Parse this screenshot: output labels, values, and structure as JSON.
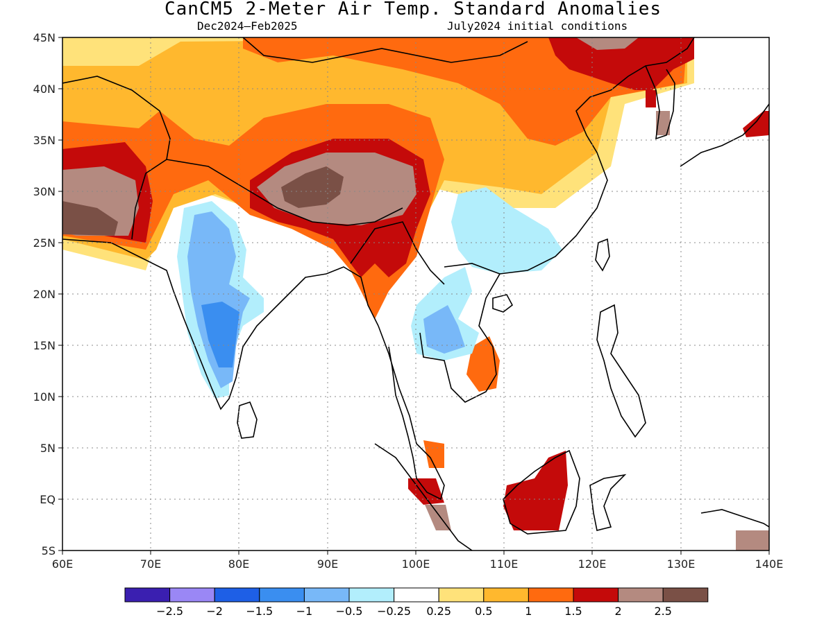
{
  "header": {
    "title": "CanCM5 2-Meter Air Temp. Standard Anomalies",
    "subtitle_left": "Dec2024–Feb2025",
    "subtitle_right": "July2024 initial conditions"
  },
  "map": {
    "lon_range": [
      60,
      140
    ],
    "lat_range": [
      -5,
      45
    ],
    "lon_ticks": [
      "60E",
      "70E",
      "80E",
      "90E",
      "100E",
      "110E",
      "120E",
      "130E",
      "140E"
    ],
    "lat_ticks": [
      "5S",
      "EQ",
      "5N",
      "10N",
      "15N",
      "20N",
      "25N",
      "30N",
      "35N",
      "40N",
      "45N"
    ],
    "gridlines": "dotted"
  },
  "colorbar": {
    "colors": [
      "#3a1fb0",
      "#9a87f5",
      "#1e5fe6",
      "#3a8ef0",
      "#78b8f8",
      "#b2eefc",
      "#ffffff",
      "#ffe27a",
      "#ffb82e",
      "#ff6a0f",
      "#c40a0a",
      "#b48a80",
      "#7a5046"
    ],
    "labels": [
      "−2.5",
      "−2",
      "−1.5",
      "−1",
      "−0.5",
      "−0.25",
      "0.25",
      "0.5",
      "1",
      "1.5",
      "2",
      "2.5"
    ]
  }
}
